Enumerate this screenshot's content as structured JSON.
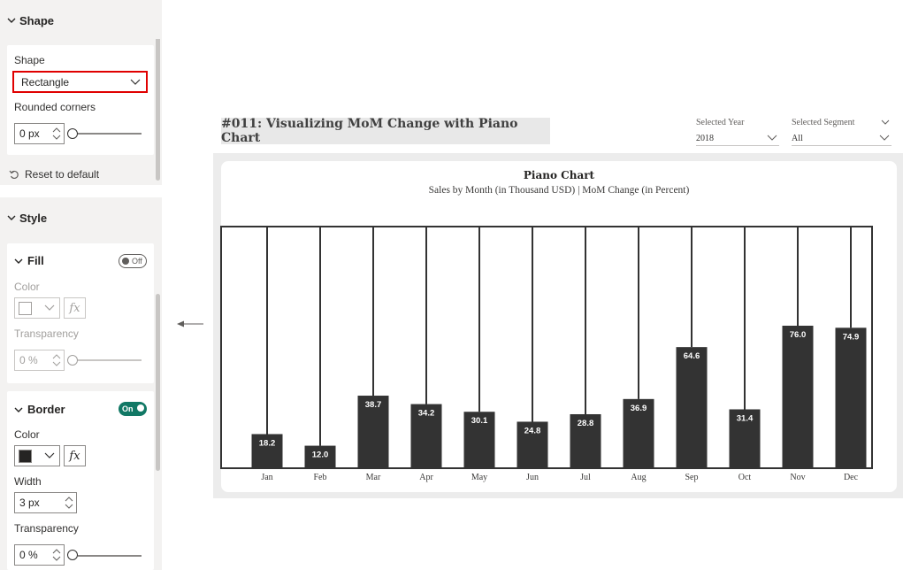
{
  "format_pane": {
    "shape_section": {
      "title": "Shape",
      "shape_label": "Shape",
      "shape_value": "Rectangle",
      "rounded_label": "Rounded corners",
      "rounded_value": "0 px",
      "reset_label": "Reset to default"
    },
    "style_section": {
      "title": "Style",
      "fill": {
        "title": "Fill",
        "toggle": "Off",
        "color_label": "Color",
        "fx_label": "fx",
        "transparency_label": "Transparency",
        "transparency_value": "0 %"
      },
      "border": {
        "title": "Border",
        "toggle": "On",
        "color_label": "Color",
        "color_value": "#252423",
        "fx_label": "fx",
        "width_label": "Width",
        "width_value": "3 px",
        "transparency_label": "Transparency",
        "transparency_value": "0 %"
      }
    }
  },
  "report": {
    "title": "#011: Visualizing MoM Change with Piano Chart",
    "slicers": [
      {
        "label": "Selected Year",
        "value": "2018"
      },
      {
        "label": "Selected Segment",
        "value": "All"
      }
    ]
  },
  "chart_data": {
    "type": "bar",
    "title": "Piano Chart",
    "subtitle": "Sales by Month (in Thousand USD) | MoM Change (in Percent)",
    "categories": [
      "Jan",
      "Feb",
      "Mar",
      "Apr",
      "May",
      "Jun",
      "Jul",
      "Aug",
      "Sep",
      "Oct",
      "Nov",
      "Dec"
    ],
    "values": [
      18.2,
      12.0,
      38.7,
      34.2,
      30.1,
      24.8,
      28.8,
      36.9,
      64.6,
      31.4,
      76.0,
      74.9
    ],
    "ylim": [
      0,
      76
    ],
    "bar_color": "#333333",
    "label_color": "#ffffff",
    "grid": false,
    "legend": "none"
  }
}
